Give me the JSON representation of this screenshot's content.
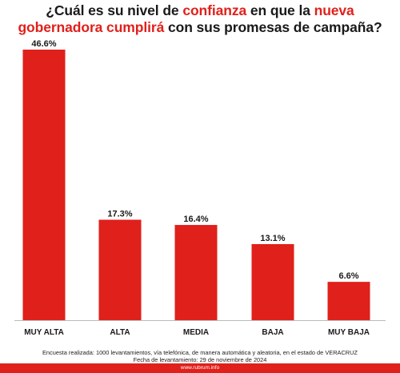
{
  "title": {
    "segments": [
      {
        "text": "¿Cuál es su nivel de ",
        "highlight": false
      },
      {
        "text": "confianza",
        "highlight": true
      },
      {
        "text": " en que la ",
        "highlight": false
      },
      {
        "text": "nueva",
        "highlight": true
      }
    ],
    "line2": [
      {
        "text": "gobernadora cumplirá",
        "highlight": true
      },
      {
        "text": " con sus promesas de campaña?",
        "highlight": false
      }
    ]
  },
  "colors": {
    "accent": "#e0201b",
    "text": "#1a1a1a",
    "axis": "#bbbbbb"
  },
  "chart_data": {
    "type": "bar",
    "categories": [
      "MUY ALTA",
      "ALTA",
      "MEDIA",
      "BAJA",
      "MUY BAJA"
    ],
    "values": [
      46.6,
      17.3,
      16.4,
      13.1,
      6.6
    ],
    "value_labels": [
      "46.6%",
      "17.3%",
      "16.4%",
      "13.1%",
      "6.6%"
    ],
    "ylim": [
      0,
      50
    ],
    "grid": false,
    "legend": "none"
  },
  "footer": {
    "line1": "Encuesta realizada: 1000 levantamientos, vía telefónica, de manera automática y aleatoria, en el estado de VERACRUZ",
    "line2": "Fecha de levantamiento: 29 de noviembre de 2024",
    "source": "www.rubrum.info"
  }
}
